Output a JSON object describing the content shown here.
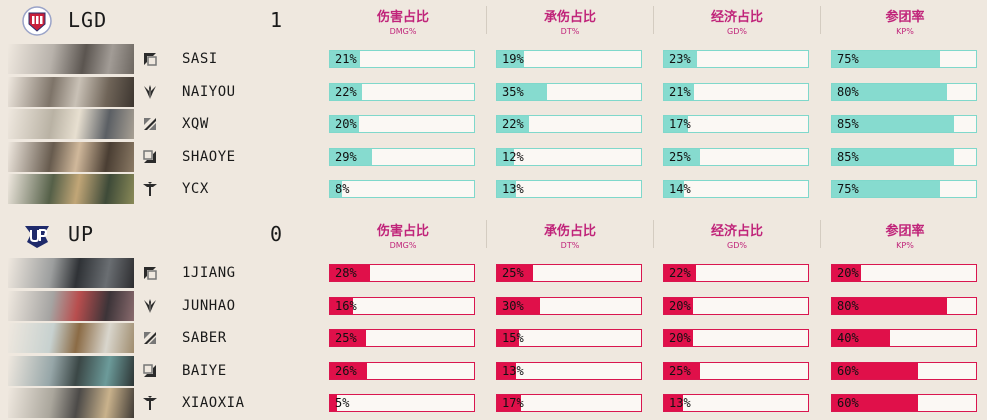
{
  "columns": [
    {
      "zh": "伤害占比",
      "en": "DMG%"
    },
    {
      "zh": "承伤占比",
      "en": "DT%"
    },
    {
      "zh": "经济占比",
      "en": "GD%"
    },
    {
      "zh": "参团率",
      "en": "KP%"
    }
  ],
  "colors": {
    "lgd_accent": "#86dbcf",
    "up_accent": "#e0104a",
    "header_text": "#c0247a",
    "background": "#efe8df"
  },
  "teams": [
    {
      "name": "LGD",
      "score": "1",
      "logo": "lgd-logo",
      "players": [
        {
          "name": "SASI",
          "role": "top-icon",
          "stats": [
            "21%",
            "19%",
            "23%",
            "75%"
          ],
          "values": [
            21,
            19,
            23,
            75
          ]
        },
        {
          "name": "NAIYOU",
          "role": "jungle-icon",
          "stats": [
            "22%",
            "35%",
            "21%",
            "80%"
          ],
          "values": [
            22,
            35,
            21,
            80
          ]
        },
        {
          "name": "XQW",
          "role": "mid-icon",
          "stats": [
            "20%",
            "22%",
            "17%",
            "85%"
          ],
          "values": [
            20,
            22,
            17,
            85
          ]
        },
        {
          "name": "SHAOYE",
          "role": "bot-icon",
          "stats": [
            "29%",
            "12%",
            "25%",
            "85%"
          ],
          "values": [
            29,
            12,
            25,
            85
          ]
        },
        {
          "name": "YCX",
          "role": "support-icon",
          "stats": [
            "8%",
            "13%",
            "14%",
            "75%"
          ],
          "values": [
            8,
            13,
            14,
            75
          ]
        }
      ]
    },
    {
      "name": "UP",
      "score": "0",
      "logo": "up-logo",
      "players": [
        {
          "name": "1JIANG",
          "role": "top-icon",
          "stats": [
            "28%",
            "25%",
            "22%",
            "20%"
          ],
          "values": [
            28,
            25,
            22,
            20
          ]
        },
        {
          "name": "JUNHAO",
          "role": "jungle-icon",
          "stats": [
            "16%",
            "30%",
            "20%",
            "80%"
          ],
          "values": [
            16,
            30,
            20,
            80
          ]
        },
        {
          "name": "SABER",
          "role": "mid-icon",
          "stats": [
            "25%",
            "15%",
            "20%",
            "40%"
          ],
          "values": [
            25,
            15,
            20,
            40
          ]
        },
        {
          "name": "BAIYE",
          "role": "bot-icon",
          "stats": [
            "26%",
            "13%",
            "25%",
            "60%"
          ],
          "values": [
            26,
            13,
            25,
            60
          ]
        },
        {
          "name": "XIAOXIA",
          "role": "support-icon",
          "stats": [
            "5%",
            "17%",
            "13%",
            "60%"
          ],
          "values": [
            5,
            17,
            13,
            60
          ]
        }
      ]
    }
  ]
}
